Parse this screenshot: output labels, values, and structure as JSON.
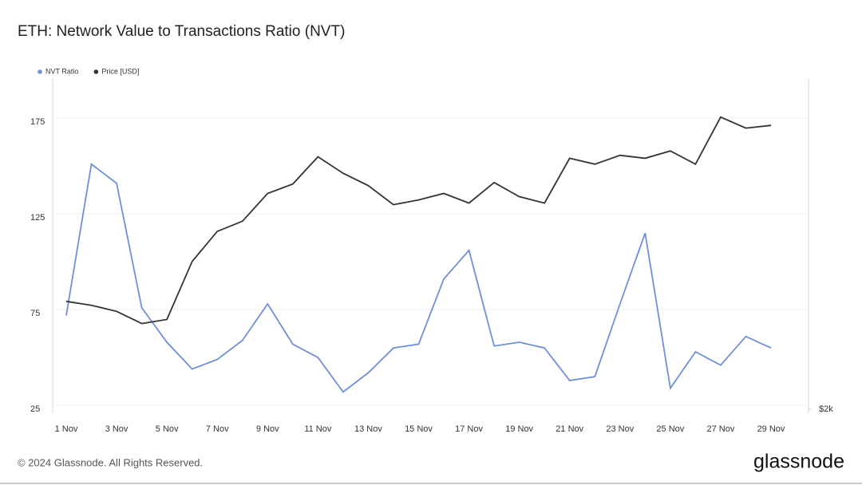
{
  "chart_data": {
    "type": "line",
    "title": "ETH: Network Value to Transactions Ratio (NVT)",
    "categories": [
      "1 Nov",
      null,
      "3 Nov",
      null,
      "5 Nov",
      null,
      "7 Nov",
      null,
      "9 Nov",
      null,
      "11 Nov",
      null,
      "13 Nov",
      null,
      "15 Nov",
      null,
      "17 Nov",
      null,
      "19 Nov",
      null,
      "21 Nov",
      null,
      "23 Nov",
      null,
      "25 Nov",
      null,
      "27 Nov",
      null,
      "29 Nov"
    ],
    "series": [
      {
        "name": "NVT Ratio",
        "color": "#6f8fd8",
        "values": [
          74,
          153,
          143,
          78,
          60,
          46,
          51,
          61,
          80,
          59,
          52,
          34,
          44,
          57,
          59,
          93,
          108,
          58,
          60,
          57,
          40,
          42,
          80,
          117,
          36,
          55,
          48,
          63,
          57
        ]
      },
      {
        "name": "Price [USD]",
        "color": "#333333",
        "axis": "y2",
        "values": [
          2490,
          2470,
          2440,
          2380,
          2400,
          2700,
          2870,
          2930,
          3100,
          3160,
          3340,
          3230,
          3150,
          3030,
          3060,
          3100,
          3040,
          3170,
          3080,
          3040,
          3330,
          3290,
          3350,
          3330,
          3380,
          3290,
          3620,
          3540,
          3560
        ]
      }
    ],
    "ylim": [
      25,
      200
    ],
    "yticks": [
      25,
      75,
      125,
      175
    ],
    "y2lim": [
      2000,
      3950
    ],
    "y2ticks": [
      {
        "value": 2000,
        "label": "$2k"
      }
    ],
    "y2log": true,
    "grid": true,
    "legend": "top-left"
  },
  "footer": {
    "copyright": "© 2024 Glassnode. All Rights Reserved.",
    "logo": "glassnode"
  }
}
